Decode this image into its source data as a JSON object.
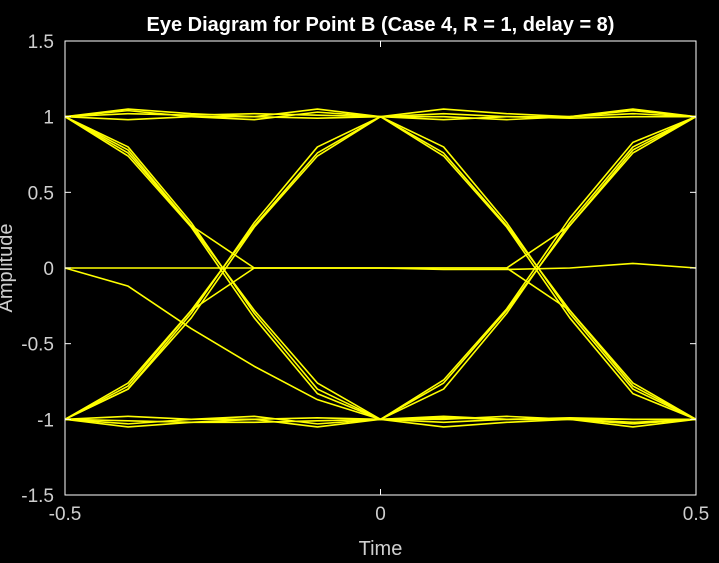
{
  "chart_data": {
    "type": "line",
    "title": "Eye Diagram for Point B (Case 4, R = 1, delay = 8)",
    "xlabel": "Time",
    "ylabel": "Amplitude",
    "xlim": [
      -0.5,
      0.5
    ],
    "ylim": [
      -1.5,
      1.5
    ],
    "xticks": [
      -0.5,
      0,
      0.5
    ],
    "xtick_labels": [
      "-0.5",
      "0",
      "0.5"
    ],
    "yticks": [
      -1.5,
      -1,
      -0.5,
      0,
      0.5,
      1,
      1.5
    ],
    "ytick_labels": [
      "-1.5",
      "-1",
      "-0.5",
      "0",
      "0.5",
      "1",
      "1.5"
    ],
    "grid": false,
    "colors": {
      "trace": "#ffff00",
      "background": "#000000",
      "axes": "#ffffff",
      "text": "#cfcfcf",
      "title": "#ffffff"
    },
    "x": [
      -0.5,
      -0.4,
      -0.3,
      -0.2,
      -0.1,
      0,
      0.1,
      0.2,
      0.3,
      0.4,
      0.5
    ],
    "traces": [
      {
        "y": [
          1,
          1.05,
          1.02,
          1,
          1.05,
          1,
          1.05,
          1.02,
          1,
          1.05,
          1
        ]
      },
      {
        "y": [
          1,
          1.04,
          1,
          0.98,
          1.03,
          1,
          1.02,
          1,
          1,
          1.04,
          1
        ]
      },
      {
        "y": [
          1,
          1.02,
          1.01,
          1.02,
          1.01,
          1,
          1,
          0.98,
          1,
          1.02,
          1
        ]
      },
      {
        "y": [
          1,
          0.98,
          1,
          1,
          0.99,
          1,
          0.98,
          1,
          0.99,
          1,
          1
        ]
      },
      {
        "y": [
          -1,
          -1.05,
          -1.02,
          -1,
          -1.05,
          -1,
          -1.05,
          -1.02,
          -1,
          -1.05,
          -1
        ]
      },
      {
        "y": [
          -1,
          -1.03,
          -1,
          -0.98,
          -1.03,
          -1,
          -1.02,
          -1,
          -1,
          -1.03,
          -1
        ]
      },
      {
        "y": [
          -1,
          -1.01,
          -1.02,
          -1.02,
          -1.01,
          -1,
          -1,
          -0.98,
          -1,
          -1.02,
          -1
        ]
      },
      {
        "y": [
          -1,
          -0.98,
          -1,
          -1,
          -0.99,
          -1,
          -0.98,
          -1,
          -0.99,
          -1,
          -1
        ]
      },
      {
        "y": [
          1,
          0.8,
          0.3,
          -0.3,
          -0.8,
          -1,
          -0.8,
          -0.3,
          0.3,
          0.8,
          1
        ]
      },
      {
        "y": [
          1,
          0.76,
          0.28,
          -0.28,
          -0.76,
          -1,
          -0.76,
          -0.28,
          0.28,
          0.76,
          1
        ]
      },
      {
        "y": [
          1,
          0.74,
          0.27,
          -0.33,
          -0.83,
          -1,
          -0.74,
          -0.27,
          0.33,
          0.83,
          1
        ]
      },
      {
        "y": [
          -1,
          -0.8,
          -0.3,
          0.3,
          0.8,
          1,
          0.8,
          0.3,
          -0.3,
          -0.8,
          -1
        ]
      },
      {
        "y": [
          -1,
          -0.76,
          -0.28,
          0.28,
          0.76,
          1,
          0.76,
          0.28,
          -0.28,
          -0.76,
          -1
        ]
      },
      {
        "y": [
          -1,
          -0.8,
          -0.33,
          0.27,
          0.74,
          1,
          0.74,
          0.27,
          -0.33,
          -0.83,
          -1
        ]
      },
      {
        "y": [
          1,
          0.78,
          0.28,
          0,
          0,
          0,
          0,
          0,
          0.28,
          0.78,
          1
        ]
      },
      {
        "y": [
          -1,
          -0.78,
          -0.28,
          0,
          0,
          0,
          0,
          0,
          -0.28,
          -0.78,
          -1
        ]
      },
      {
        "y": [
          0,
          0,
          0,
          0,
          0,
          0,
          -0.01,
          -0.01,
          0,
          0.03,
          0
        ]
      },
      {
        "y": [
          0,
          -0.12,
          -0.4,
          -0.65,
          -0.87,
          -1,
          -0.99,
          -1,
          -1,
          -1,
          -1
        ]
      }
    ]
  }
}
